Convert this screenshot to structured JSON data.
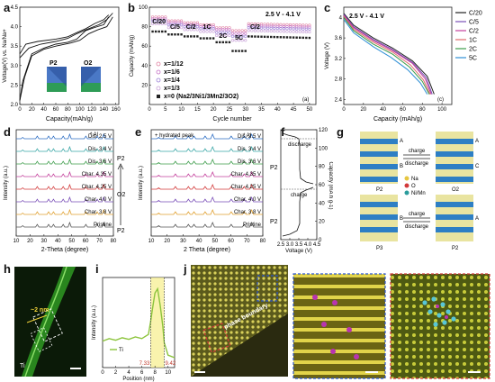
{
  "panels": {
    "a": {
      "label": "a",
      "xlabel": "Capacity(mAh/g)",
      "ylabel": "Voltage(V) vs. Na/Na+",
      "xticks": [
        "0",
        "20",
        "40",
        "60",
        "80",
        "100",
        "120",
        "140",
        "160"
      ],
      "yticks": [
        "2.0",
        "2.5",
        "3.0",
        "3.5",
        "4.0",
        "4.5"
      ],
      "inset_p2": "P2",
      "inset_o2": "O2"
    },
    "b": {
      "label": "b",
      "xlabel": "Cycle number",
      "ylabel": "Capacity (mAh/g)",
      "corner": "(a)",
      "range": "2.5 V - 4.1 V",
      "rates": [
        "C/20",
        "C/5",
        "C/2",
        "1C",
        "2C",
        "5C",
        "C/2"
      ],
      "xticks": [
        "0",
        "5",
        "10",
        "15",
        "20",
        "25",
        "30",
        "35",
        "40",
        "45",
        "50"
      ],
      "yticks": [
        "20",
        "40",
        "60",
        "80",
        "100"
      ],
      "legend": [
        "x=1/12",
        "x=1/6",
        "x=1/4",
        "x=1/3",
        "x=0 (Na2/3Ni1/3Mn2/3O2)"
      ]
    },
    "c": {
      "label": "c",
      "xlabel": "Capacity (mAh/g)",
      "ylabel": "Voltage (V)",
      "corner": "(c)",
      "range": "2.5 V - 4.1 V",
      "xticks": [
        "0",
        "20",
        "40",
        "60",
        "80",
        "100"
      ],
      "yticks": [
        "2.4",
        "2.8",
        "3.2",
        "3.6",
        "4"
      ],
      "legend": [
        "C/20",
        "C/5",
        "C/2",
        "1C",
        "2C",
        "5C"
      ]
    },
    "d": {
      "label": "d",
      "xlabel": "2-Theta (degree)",
      "ylabel": "Intensity (a.u.)",
      "al": "* Al",
      "phases": [
        "P2",
        "O2",
        "P2"
      ],
      "xticks": [
        "10",
        "20",
        "30",
        "40",
        "50",
        "60",
        "70",
        "80"
      ],
      "traces": [
        "Dis. 2.5 V",
        "Dis. 3.4 V",
        "Dis. 3.6 V",
        "Char. 4.35 V",
        "Char. 4.25 V",
        "Char. 4.0 V",
        "Char. 3.8 V",
        "Pristine"
      ]
    },
    "e": {
      "label": "e",
      "xlabel": "2 Theta (degree)",
      "ylabel": "Intensity (a.u.)",
      "note": "+ hydrated peak",
      "al": "* Al",
      "xticks": [
        "10",
        "20",
        "30",
        "40",
        "50",
        "60",
        "70",
        "80"
      ],
      "traces": [
        "Dis. 2.5 V",
        "Dis. 3.4 V",
        "Dis. 3.6 V",
        "Char. 4.35 V",
        "Char. 4.25 V",
        "Char. 4.0 V",
        "Char. 3.8 V",
        "Pristine"
      ]
    },
    "f": {
      "label": "f",
      "xlabel": "Voltage (V)",
      "ylabel": "Capacity (mA h g-1)",
      "discharge": "discharge",
      "charge": "charge",
      "phases": [
        "P2",
        "P2"
      ],
      "xticks": [
        "2.5",
        "3.0",
        "3.5",
        "4.0",
        "4.5"
      ],
      "yticks": [
        "0",
        "20",
        "40",
        "60",
        "80",
        "100",
        "120"
      ]
    },
    "g": {
      "label": "g",
      "legend": [
        "Na",
        "O",
        "Ni/Mn"
      ],
      "charge": "charge",
      "discharge": "discharge",
      "phases": [
        "P2",
        "O2",
        "P3",
        "P2"
      ],
      "stack_letters": [
        "A",
        "B",
        "A",
        "C",
        "B",
        "A"
      ]
    },
    "h": {
      "label": "h",
      "scale": "~2 nm",
      "element": "Ti"
    },
    "i": {
      "label": "i",
      "xlabel": "Position (nm)",
      "ylabel": "Intensity (a.u.)",
      "legend": "Ti",
      "marks": [
        "7.33",
        "9.42"
      ],
      "xticks": [
        "0",
        "2",
        "4",
        "6",
        "8",
        "10"
      ]
    },
    "j": {
      "label": "j",
      "boundary": "phase boundary"
    }
  },
  "chart_data": [
    {
      "type": "line",
      "title": "",
      "xlabel": "Capacity(mAh/g)",
      "ylabel": "Voltage(V) vs. Na/Na+",
      "xlim": [
        0,
        165
      ],
      "ylim": [
        2.0,
        4.5
      ],
      "series": [
        {
          "name": "",
          "x": [
            0,
            10,
            30,
            60,
            80,
            95,
            110,
            125,
            140,
            148
          ],
          "y": [
            3.3,
            3.55,
            3.62,
            3.68,
            3.74,
            3.85,
            3.95,
            4.08,
            4.18,
            4.3
          ]
        },
        {
          "name": "",
          "x": [
            148,
            140,
            125,
            110,
            95,
            80,
            60,
            40,
            20,
            5,
            0
          ],
          "y": [
            4.25,
            4.05,
            3.98,
            3.9,
            3.68,
            3.6,
            3.55,
            3.45,
            3.3,
            2.6,
            2.1
          ]
        },
        {
          "name": "",
          "x": [
            0,
            15,
            35,
            60,
            80,
            95,
            115,
            132,
            145,
            155
          ],
          "y": [
            3.2,
            3.45,
            3.55,
            3.62,
            3.7,
            3.82,
            3.95,
            4.05,
            4.18,
            4.35
          ]
        },
        {
          "name": "",
          "x": [
            155,
            145,
            130,
            115,
            100,
            85,
            60,
            40,
            20,
            8,
            0
          ],
          "y": [
            4.25,
            4.0,
            3.92,
            3.82,
            3.65,
            3.58,
            3.5,
            3.42,
            3.25,
            2.7,
            2.1
          ]
        }
      ]
    },
    {
      "type": "scatter",
      "title": "",
      "xlabel": "Cycle number",
      "ylabel": "Capacity (mAh/g)",
      "xlim": [
        0,
        52
      ],
      "ylim": [
        0,
        100
      ],
      "segments": [
        {
          "label": "C/20",
          "cycles": [
            1,
            5
          ]
        },
        {
          "label": "C/5",
          "cycles": [
            6,
            10
          ]
        },
        {
          "label": "C/2",
          "cycles": [
            11,
            15
          ]
        },
        {
          "label": "1C",
          "cycles": [
            16,
            20
          ]
        },
        {
          "label": "2C",
          "cycles": [
            21,
            25
          ]
        },
        {
          "label": "5C",
          "cycles": [
            26,
            30
          ]
        },
        {
          "label": "C/2",
          "cycles": [
            31,
            50
          ]
        }
      ],
      "series": [
        {
          "name": "x=1/12",
          "seg_values": [
            90,
            86,
            84,
            82,
            79,
            76,
            83
          ]
        },
        {
          "name": "x=1/6",
          "seg_values": [
            88,
            84,
            82,
            80,
            77,
            73,
            81
          ]
        },
        {
          "name": "x=1/4",
          "seg_values": [
            86,
            82,
            80,
            78,
            74,
            70,
            79
          ]
        },
        {
          "name": "x=1/3",
          "seg_values": [
            83,
            79,
            77,
            75,
            71,
            66,
            76
          ]
        },
        {
          "name": "x=0 (Na2/3Ni1/3Mn2/3O2)",
          "seg_values": [
            75,
            72,
            70,
            68,
            64,
            55,
            70
          ]
        }
      ]
    },
    {
      "type": "line",
      "title": "",
      "xlabel": "Capacity (mAh/g)",
      "ylabel": "Voltage (V)",
      "xlim": [
        0,
        110
      ],
      "ylim": [
        2.3,
        4.2
      ],
      "series": [
        {
          "name": "C/20",
          "x": [
            0,
            10,
            30,
            50,
            70,
            85,
            92
          ],
          "y": [
            4.08,
            3.85,
            3.6,
            3.4,
            3.15,
            2.85,
            2.5
          ]
        },
        {
          "name": "C/5",
          "x": [
            0,
            10,
            30,
            50,
            70,
            84,
            90
          ],
          "y": [
            4.06,
            3.82,
            3.57,
            3.37,
            3.12,
            2.82,
            2.5
          ]
        },
        {
          "name": "C/2",
          "x": [
            0,
            10,
            30,
            50,
            70,
            83,
            89
          ],
          "y": [
            4.04,
            3.8,
            3.55,
            3.35,
            3.1,
            2.8,
            2.5
          ]
        },
        {
          "name": "1C",
          "x": [
            0,
            10,
            30,
            50,
            68,
            81,
            88
          ],
          "y": [
            4.02,
            3.77,
            3.52,
            3.32,
            3.07,
            2.78,
            2.5
          ]
        },
        {
          "name": "2C",
          "x": [
            0,
            10,
            30,
            50,
            67,
            80,
            87
          ],
          "y": [
            4.0,
            3.74,
            3.48,
            3.28,
            3.03,
            2.75,
            2.5
          ]
        },
        {
          "name": "5C",
          "x": [
            0,
            10,
            30,
            48,
            65,
            78,
            85
          ],
          "y": [
            3.96,
            3.7,
            3.43,
            3.22,
            2.98,
            2.72,
            2.5
          ]
        }
      ]
    },
    {
      "type": "line",
      "title": "",
      "xlabel": "Position (nm)",
      "ylabel": "Intensity (a.u.)",
      "xlim": [
        0,
        11
      ],
      "series": [
        {
          "name": "Ti",
          "x": [
            0,
            1,
            2,
            3,
            4,
            5,
            6,
            7,
            7.33,
            7.6,
            8,
            8.4,
            8.8,
            9.2,
            9.42,
            10,
            11
          ],
          "y": [
            0.32,
            0.35,
            0.33,
            0.36,
            0.34,
            0.37,
            0.35,
            0.4,
            0.55,
            0.7,
            0.9,
            0.95,
            0.75,
            0.5,
            0.3,
            0.15,
            0.12
          ]
        }
      ]
    }
  ]
}
